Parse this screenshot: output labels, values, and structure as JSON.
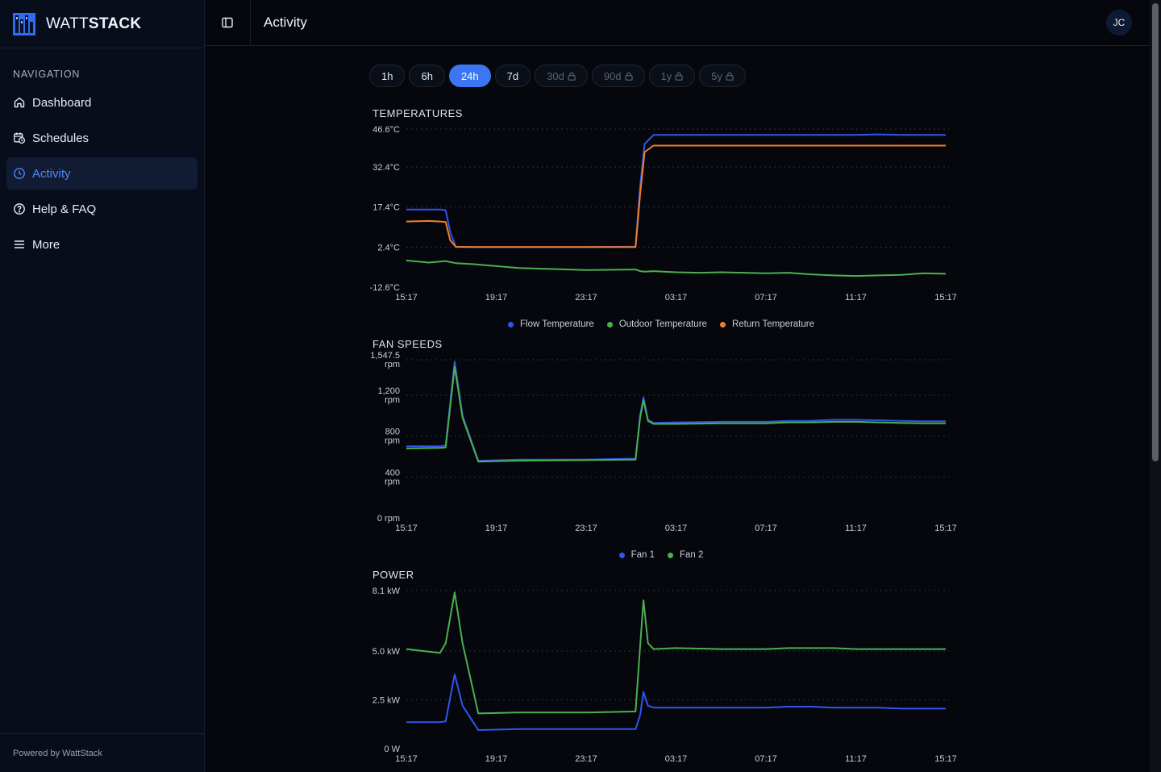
{
  "app": {
    "brand_prefix": "WATT",
    "brand_suffix": "STACK",
    "footer": "Powered by WattStack"
  },
  "sidebar": {
    "heading": "NAVIGATION",
    "items": [
      {
        "label": "Dashboard",
        "icon": "home-icon",
        "active": false
      },
      {
        "label": "Schedules",
        "icon": "calendar-clock-icon",
        "active": false
      },
      {
        "label": "Activity",
        "icon": "clock-icon",
        "active": true
      },
      {
        "label": "Help & FAQ",
        "icon": "help-circle-icon",
        "active": false
      },
      {
        "label": "More",
        "icon": "menu-icon",
        "active": false
      }
    ]
  },
  "header": {
    "title": "Activity",
    "avatar_initials": "JC",
    "toggle_icon": "sidebar-toggle-icon"
  },
  "ranges": [
    {
      "label": "1h",
      "active": false,
      "locked": false
    },
    {
      "label": "6h",
      "active": false,
      "locked": false
    },
    {
      "label": "24h",
      "active": true,
      "locked": false
    },
    {
      "label": "7d",
      "active": false,
      "locked": false
    },
    {
      "label": "30d",
      "active": false,
      "locked": true
    },
    {
      "label": "90d",
      "active": false,
      "locked": true
    },
    {
      "label": "1y",
      "active": false,
      "locked": true
    },
    {
      "label": "5y",
      "active": false,
      "locked": true
    }
  ],
  "colors": {
    "accent": "#3b77f2",
    "blue_series": "#2f55f0",
    "green_series": "#4caf50",
    "orange_series": "#f07f2a",
    "sidebar_bg": "#080d1c",
    "page_bg": "#05070c"
  },
  "chart_data": [
    {
      "type": "line",
      "title": "TEMPERATURES",
      "y_ticks": [
        "46.6°C",
        "32.4°C",
        "17.4°C",
        "2.4°C",
        "-12.6°C"
      ],
      "y_tick_values": [
        46.6,
        32.4,
        17.4,
        2.4,
        -12.6
      ],
      "ylim": [
        -12.6,
        46.6
      ],
      "x_ticks": [
        "15:17",
        "19:17",
        "23:17",
        "03:17",
        "07:17",
        "11:17",
        "15:17"
      ],
      "x": [
        0,
        1,
        1.5,
        1.75,
        1.95,
        2.2,
        3,
        5,
        8,
        10.2,
        10.4,
        10.6,
        11,
        12,
        13,
        14,
        15,
        16,
        17,
        18,
        19,
        20,
        21,
        22,
        23,
        24
      ],
      "grid": true,
      "legend": "bottom-center",
      "series": [
        {
          "name": "Flow Temperature",
          "color": "#2f55f0",
          "values": [
            16.5,
            16.5,
            16.5,
            16.2,
            8.0,
            2.5,
            2.4,
            2.4,
            2.4,
            2.6,
            25.0,
            41.0,
            44.4,
            44.4,
            44.4,
            44.4,
            44.4,
            44.4,
            44.4,
            44.4,
            44.4,
            44.4,
            44.6,
            44.4,
            44.4,
            44.4
          ]
        },
        {
          "name": "Outdoor Temperature",
          "color": "#4caf50",
          "values": [
            -2.6,
            -3.4,
            -3.0,
            -2.8,
            -3.2,
            -3.6,
            -4.0,
            -5.4,
            -6.2,
            -6.0,
            -6.6,
            -6.8,
            -6.6,
            -7.0,
            -7.2,
            -7.0,
            -7.2,
            -7.4,
            -7.2,
            -7.8,
            -8.2,
            -8.4,
            -8.2,
            -8.0,
            -7.4,
            -7.6
          ]
        },
        {
          "name": "Return Temperature",
          "color": "#f07f2a",
          "values": [
            12.0,
            12.2,
            12.0,
            11.8,
            5.0,
            2.5,
            2.4,
            2.4,
            2.4,
            2.4,
            22.0,
            38.0,
            40.4,
            40.4,
            40.4,
            40.4,
            40.4,
            40.4,
            40.4,
            40.4,
            40.4,
            40.4,
            40.4,
            40.4,
            40.4,
            40.4
          ]
        }
      ]
    },
    {
      "type": "line",
      "title": "FAN SPEEDS",
      "y_ticks": [
        "1,547.5\nrpm",
        "1,200\nrpm",
        "800\nrpm",
        "400\nrpm",
        "0 rpm"
      ],
      "y_tick_values": [
        1547.5,
        1200,
        800,
        400,
        0
      ],
      "ylim": [
        0,
        1547.5
      ],
      "x_ticks": [
        "15:17",
        "19:17",
        "23:17",
        "03:17",
        "07:17",
        "11:17",
        "15:17"
      ],
      "x": [
        0,
        1.5,
        1.75,
        2.15,
        2.5,
        3.2,
        5,
        8,
        10.2,
        10.4,
        10.55,
        10.75,
        11,
        12,
        14,
        16,
        17,
        18,
        19,
        20,
        21,
        22,
        23,
        24
      ],
      "grid": true,
      "legend": "bottom-center",
      "series": [
        {
          "name": "Fan 1",
          "color": "#2f55f0",
          "values": [
            700,
            700,
            710,
            1530,
            1000,
            560,
            570,
            570,
            580,
            1000,
            1180,
            960,
            930,
            935,
            940,
            940,
            950,
            950,
            960,
            960,
            955,
            950,
            945,
            945
          ]
        },
        {
          "name": "Fan 2",
          "color": "#4caf50",
          "values": [
            680,
            685,
            690,
            1480,
            980,
            550,
            560,
            565,
            570,
            980,
            1150,
            950,
            920,
            920,
            925,
            925,
            935,
            935,
            940,
            940,
            935,
            930,
            925,
            925
          ]
        }
      ]
    },
    {
      "type": "line",
      "title": "POWER",
      "y_ticks": [
        "8.1 kW",
        "5.0 kW",
        "2.5 kW",
        "0 W"
      ],
      "y_tick_values": [
        8100,
        5000,
        2500,
        0
      ],
      "ylim": [
        0,
        8100
      ],
      "x_ticks": [
        "15:17",
        "19:17",
        "23:17",
        "03:17",
        "07:17",
        "11:17",
        "15:17"
      ],
      "x": [
        0,
        1.5,
        1.75,
        2.15,
        2.5,
        3.2,
        5,
        8,
        10.2,
        10.4,
        10.55,
        10.75,
        11,
        12,
        14,
        16,
        17,
        18,
        19,
        20,
        21,
        22,
        23,
        24
      ],
      "grid": true,
      "legend": "none",
      "series": [
        {
          "name": "Green",
          "color": "#4caf50",
          "values": [
            5.1,
            4.9,
            5.4,
            8.0,
            5.4,
            1.8,
            1.85,
            1.85,
            1.9,
            5.2,
            7.6,
            5.4,
            5.1,
            5.15,
            5.1,
            5.1,
            5.15,
            5.15,
            5.15,
            5.1,
            5.1,
            5.1,
            5.1,
            5.1
          ]
        },
        {
          "name": "Blue",
          "color": "#2f55f0",
          "values": [
            1.35,
            1.35,
            1.4,
            3.8,
            2.2,
            0.95,
            1.0,
            1.0,
            1.0,
            1.7,
            2.9,
            2.2,
            2.1,
            2.1,
            2.1,
            2.1,
            2.15,
            2.15,
            2.1,
            2.1,
            2.1,
            2.05,
            2.05,
            2.05
          ]
        }
      ]
    }
  ]
}
